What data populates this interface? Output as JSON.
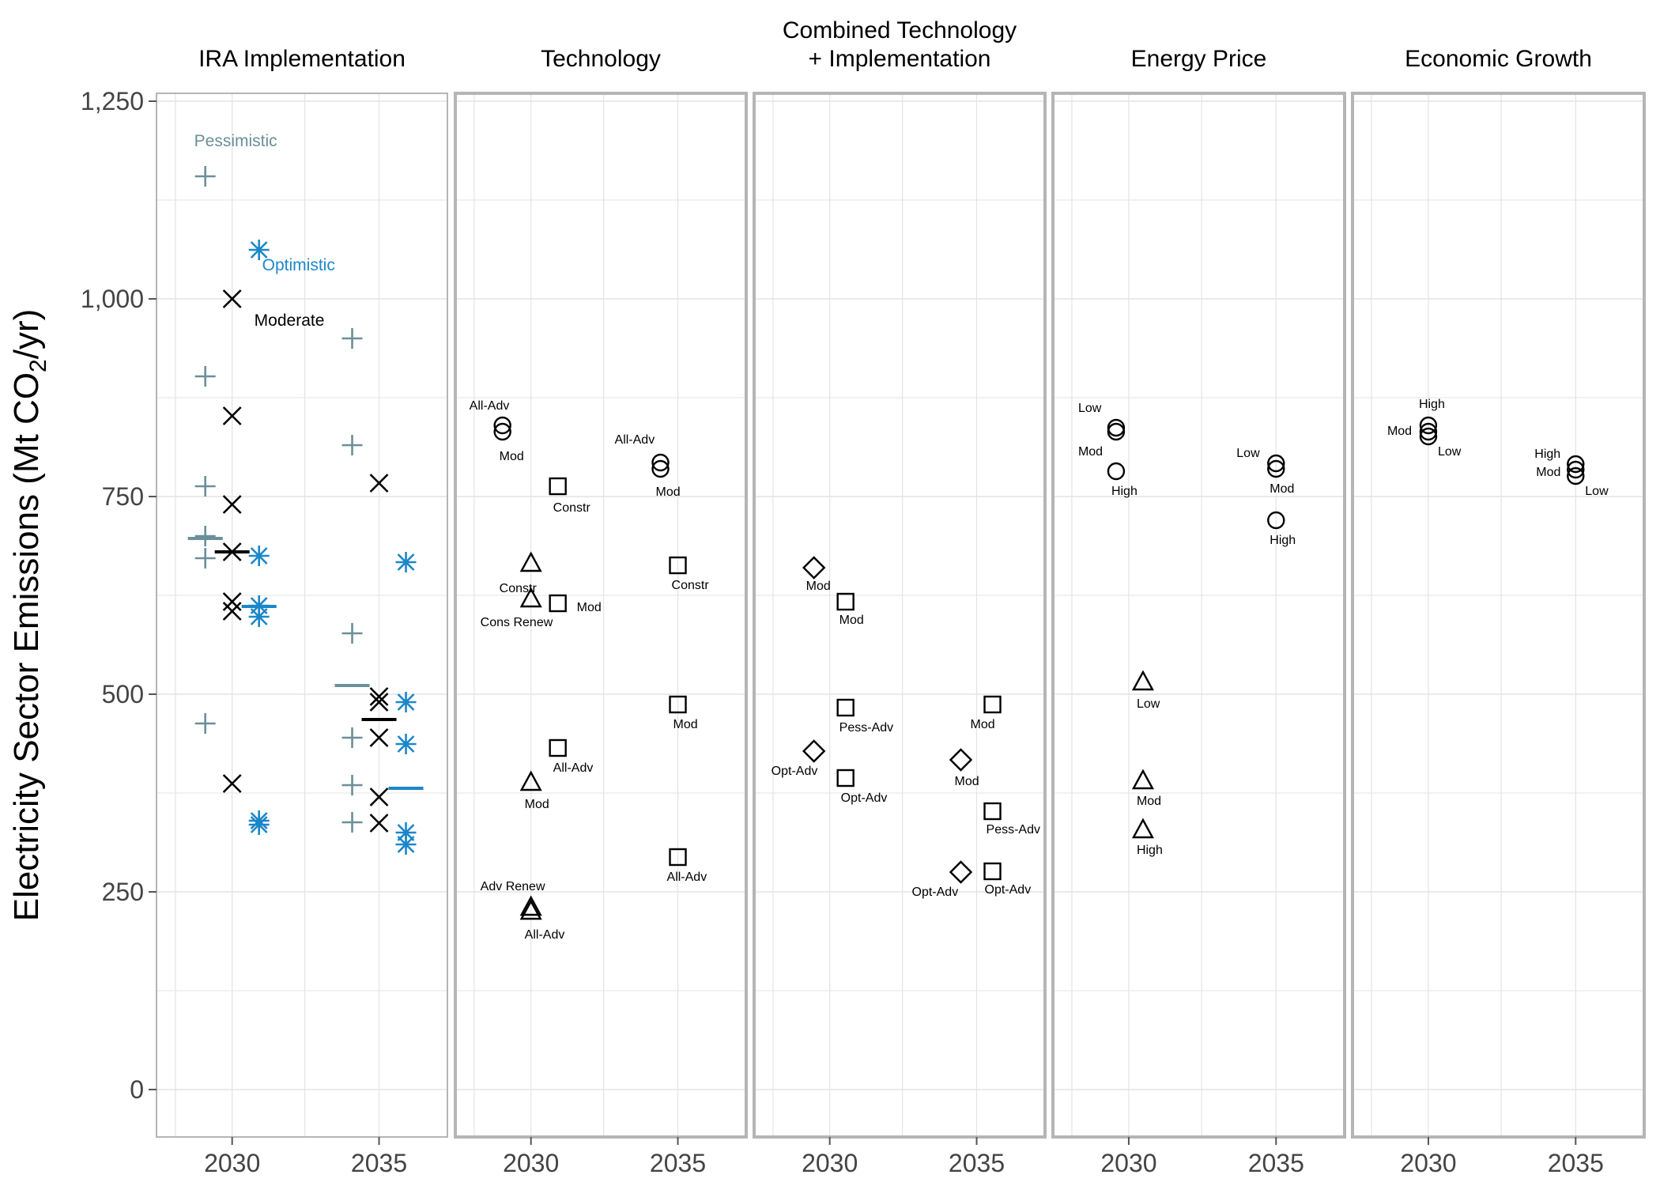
{
  "chart_data": {
    "type": "scatter",
    "ylabel_main": "Electricity Sector Emissions (Mt CO",
    "ylabel_sub": "2",
    "ylabel_tail": "/yr)",
    "y_ticks": [
      "0",
      "250",
      "500",
      "750",
      "1,000",
      "1,250"
    ],
    "y_tick_values": [
      0,
      250,
      500,
      750,
      1000,
      1250
    ],
    "ylim": [
      -60,
      1260
    ],
    "x_ticks": [
      "2030",
      "2035"
    ],
    "colors": {
      "pessimistic": "#6a8f99",
      "optimistic": "#1b87c9",
      "moderate": "#000000",
      "frame": "#b5b5b5",
      "grid": "#e3e3e3"
    },
    "panels": [
      {
        "title": "IRA Implementation",
        "series": [
          {
            "name": "Pessimistic",
            "marker": "plus",
            "color": "#6a8f99",
            "points": [
              {
                "x": 2030,
                "y": 1155
              },
              {
                "x": 2030,
                "y": 902
              },
              {
                "x": 2030,
                "y": 763
              },
              {
                "x": 2030,
                "y": 700
              },
              {
                "x": 2030,
                "y": 672
              },
              {
                "x": 2030,
                "y": 463
              },
              {
                "x": 2035,
                "y": 950
              },
              {
                "x": 2035,
                "y": 815
              },
              {
                "x": 2035,
                "y": 577
              },
              {
                "x": 2035,
                "y": 445
              },
              {
                "x": 2035,
                "y": 385
              },
              {
                "x": 2035,
                "y": 338
              }
            ],
            "means": [
              {
                "x": 2030,
                "y": 697
              },
              {
                "x": 2035,
                "y": 511
              }
            ]
          },
          {
            "name": "Moderate",
            "marker": "x",
            "color": "#000000",
            "points": [
              {
                "x": 2030,
                "y": 1000
              },
              {
                "x": 2030,
                "y": 852
              },
              {
                "x": 2030,
                "y": 740
              },
              {
                "x": 2030,
                "y": 680
              },
              {
                "x": 2030,
                "y": 617
              },
              {
                "x": 2030,
                "y": 605
              },
              {
                "x": 2030,
                "y": 387
              },
              {
                "x": 2035,
                "y": 767
              },
              {
                "x": 2035,
                "y": 497
              },
              {
                "x": 2035,
                "y": 490
              },
              {
                "x": 2035,
                "y": 445
              },
              {
                "x": 2035,
                "y": 370
              },
              {
                "x": 2035,
                "y": 337
              }
            ],
            "means": [
              {
                "x": 2030,
                "y": 680
              },
              {
                "x": 2035,
                "y": 468
              }
            ]
          },
          {
            "name": "Optimistic",
            "marker": "asterisk",
            "color": "#1b87c9",
            "points": [
              {
                "x": 2030,
                "y": 1062
              },
              {
                "x": 2030,
                "y": 675
              },
              {
                "x": 2030,
                "y": 612
              },
              {
                "x": 2030,
                "y": 598
              },
              {
                "x": 2030,
                "y": 340
              },
              {
                "x": 2030,
                "y": 335
              },
              {
                "x": 2035,
                "y": 667
              },
              {
                "x": 2035,
                "y": 490
              },
              {
                "x": 2035,
                "y": 437
              },
              {
                "x": 2035,
                "y": 325
              },
              {
                "x": 2035,
                "y": 310
              }
            ],
            "means": [
              {
                "x": 2030,
                "y": 611
              },
              {
                "x": 2035,
                "y": 381
              }
            ]
          }
        ]
      },
      {
        "title": "Technology",
        "points": [
          {
            "x": 2030,
            "y": 840,
            "marker": "circle",
            "label": "All-Adv"
          },
          {
            "x": 2030,
            "y": 832,
            "marker": "circle",
            "label": "Mod"
          },
          {
            "x": 2030,
            "y": 763,
            "marker": "square",
            "label": "Constr"
          },
          {
            "x": 2030,
            "y": 665,
            "marker": "triangle",
            "label": "Constr"
          },
          {
            "x": 2030,
            "y": 620,
            "marker": "triangle",
            "label": "Cons Renew"
          },
          {
            "x": 2030,
            "y": 615,
            "marker": "square",
            "label": "Mod"
          },
          {
            "x": 2030,
            "y": 432,
            "marker": "square",
            "label": "All-Adv"
          },
          {
            "x": 2030,
            "y": 388,
            "marker": "triangle",
            "label": "Mod"
          },
          {
            "x": 2030,
            "y": 230,
            "marker": "triangle",
            "label": "Adv Renew"
          },
          {
            "x": 2030,
            "y": 225,
            "marker": "triangle",
            "label": "All-Adv"
          },
          {
            "x": 2035,
            "y": 793,
            "marker": "circle",
            "label": "All-Adv"
          },
          {
            "x": 2035,
            "y": 785,
            "marker": "circle",
            "label": "Mod"
          },
          {
            "x": 2035,
            "y": 663,
            "marker": "square",
            "label": "Constr"
          },
          {
            "x": 2035,
            "y": 487,
            "marker": "square",
            "label": "Mod"
          },
          {
            "x": 2035,
            "y": 294,
            "marker": "square",
            "label": "All-Adv"
          }
        ]
      },
      {
        "title": "Combined Technology + Implementation",
        "title_lines": [
          "Combined Technology",
          "+ Implementation"
        ],
        "points": [
          {
            "x": 2030,
            "y": 660,
            "marker": "diamond",
            "label": "Mod"
          },
          {
            "x": 2030,
            "y": 617,
            "marker": "square",
            "label": "Mod"
          },
          {
            "x": 2030,
            "y": 483,
            "marker": "square",
            "label": "Pess-Adv"
          },
          {
            "x": 2030,
            "y": 428,
            "marker": "diamond",
            "label": "Opt-Adv"
          },
          {
            "x": 2030,
            "y": 394,
            "marker": "square",
            "label": "Opt-Adv"
          },
          {
            "x": 2035,
            "y": 487,
            "marker": "square",
            "label": "Mod"
          },
          {
            "x": 2035,
            "y": 417,
            "marker": "diamond",
            "label": "Mod"
          },
          {
            "x": 2035,
            "y": 352,
            "marker": "square",
            "label": "Pess-Adv"
          },
          {
            "x": 2035,
            "y": 275,
            "marker": "diamond",
            "label": "Opt-Adv"
          },
          {
            "x": 2035,
            "y": 276,
            "marker": "square",
            "label": "Opt-Adv"
          }
        ]
      },
      {
        "title": "Energy Price",
        "points": [
          {
            "x": 2030,
            "y": 837,
            "marker": "circle",
            "label": "Low"
          },
          {
            "x": 2030,
            "y": 832,
            "marker": "circle",
            "label": "Mod"
          },
          {
            "x": 2030,
            "y": 782,
            "marker": "circle",
            "label": "High"
          },
          {
            "x": 2030,
            "y": 515,
            "marker": "triangle",
            "label": "Low"
          },
          {
            "x": 2030,
            "y": 390,
            "marker": "triangle",
            "label": "Mod"
          },
          {
            "x": 2030,
            "y": 328,
            "marker": "triangle",
            "label": "High"
          },
          {
            "x": 2035,
            "y": 792,
            "marker": "circle",
            "label": "Low"
          },
          {
            "x": 2035,
            "y": 785,
            "marker": "circle",
            "label": "Mod"
          },
          {
            "x": 2035,
            "y": 720,
            "marker": "circle",
            "label": "High"
          }
        ]
      },
      {
        "title": "Economic Growth",
        "points": [
          {
            "x": 2030,
            "y": 840,
            "marker": "circle",
            "label": "High"
          },
          {
            "x": 2030,
            "y": 832,
            "marker": "circle",
            "label": "Mod"
          },
          {
            "x": 2030,
            "y": 826,
            "marker": "circle",
            "label": "Low"
          },
          {
            "x": 2035,
            "y": 791,
            "marker": "circle",
            "label": "High"
          },
          {
            "x": 2035,
            "y": 784,
            "marker": "circle",
            "label": "Mod"
          },
          {
            "x": 2035,
            "y": 776,
            "marker": "circle",
            "label": "Low"
          }
        ]
      }
    ]
  }
}
